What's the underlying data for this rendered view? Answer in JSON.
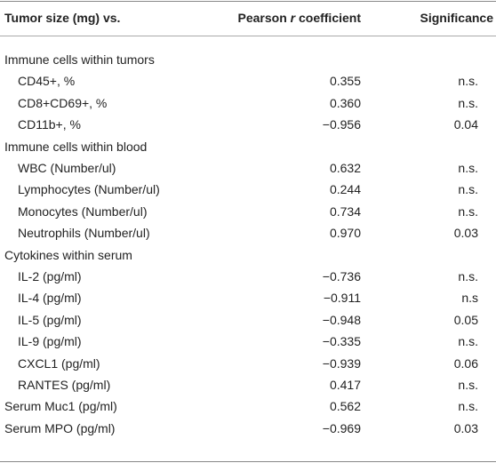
{
  "table": {
    "header": [
      "Tumor size (mg) vs.",
      [
        "Pearson",
        "r",
        "coefficient"
      ],
      "Significance"
    ],
    "groups": [
      {
        "title": "Immune cells within tumors",
        "rows": [
          [
            "CD45+, %",
            "0.355",
            "n.s."
          ],
          [
            "CD8+CD69+, %",
            "0.360",
            "n.s."
          ],
          [
            "CD11b+, %",
            "−0.956",
            "0.04"
          ]
        ]
      },
      {
        "title": "Immune cells within blood",
        "rows": [
          [
            "WBC (Number/ul)",
            "0.632",
            "n.s."
          ],
          [
            "Lymphocytes (Number/ul)",
            "0.244",
            "n.s."
          ],
          [
            "Monocytes (Number/ul)",
            "0.734",
            "n.s."
          ],
          [
            "Neutrophils (Number/ul)",
            "0.970",
            "0.03"
          ]
        ]
      },
      {
        "title": "Cytokines within serum",
        "rows": [
          [
            "IL-2 (pg/ml)",
            "−0.736",
            "n.s."
          ],
          [
            "IL-4 (pg/ml)",
            "−0.911",
            "n.s"
          ],
          [
            "IL-5 (pg/ml)",
            "−0.948",
            "0.05"
          ],
          [
            "IL-9 (pg/ml)",
            "−0.335",
            "n.s."
          ],
          [
            "CXCL1 (pg/ml)",
            "−0.939",
            "0.06"
          ],
          [
            "RANTES (pg/ml)",
            "0.417",
            "n.s."
          ]
        ]
      }
    ],
    "rows": [
      [
        "Serum Muc1 (pg/ml)",
        "0.562",
        "n.s."
      ],
      [
        "Serum MPO (pg/ml)",
        "−0.969",
        "0.03"
      ]
    ]
  }
}
